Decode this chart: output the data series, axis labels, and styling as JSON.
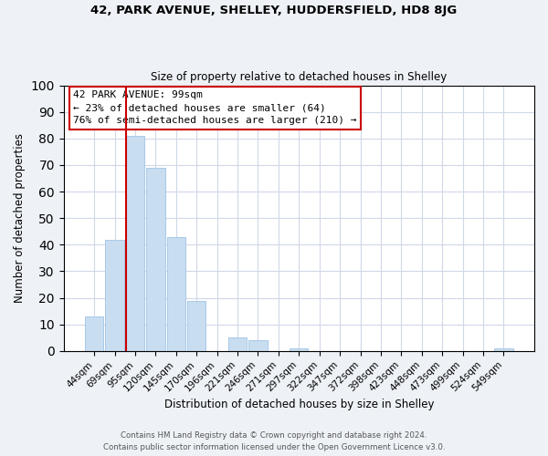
{
  "title1": "42, PARK AVENUE, SHELLEY, HUDDERSFIELD, HD8 8JG",
  "title2": "Size of property relative to detached houses in Shelley",
  "xlabel": "Distribution of detached houses by size in Shelley",
  "ylabel": "Number of detached properties",
  "categories": [
    "44sqm",
    "69sqm",
    "95sqm",
    "120sqm",
    "145sqm",
    "170sqm",
    "196sqm",
    "221sqm",
    "246sqm",
    "271sqm",
    "297sqm",
    "322sqm",
    "347sqm",
    "372sqm",
    "398sqm",
    "423sqm",
    "448sqm",
    "473sqm",
    "499sqm",
    "524sqm",
    "549sqm"
  ],
  "values": [
    13,
    42,
    81,
    69,
    43,
    19,
    0,
    5,
    4,
    0,
    1,
    0,
    0,
    0,
    0,
    0,
    0,
    0,
    0,
    0,
    1
  ],
  "bar_color": "#c8ddf0",
  "bar_edge_color": "#a8c8e8",
  "vline_x": 2.0,
  "vline_color": "#cc0000",
  "annotation_title": "42 PARK AVENUE: 99sqm",
  "annotation_line1": "← 23% of detached houses are smaller (64)",
  "annotation_line2": "76% of semi-detached houses are larger (210) →",
  "ylim": [
    0,
    100
  ],
  "yticks": [
    0,
    10,
    20,
    30,
    40,
    50,
    60,
    70,
    80,
    90,
    100
  ],
  "footer1": "Contains HM Land Registry data © Crown copyright and database right 2024.",
  "footer2": "Contains public sector information licensed under the Open Government Licence v3.0.",
  "bg_color": "#eef2f7",
  "plot_bg_color": "#ffffff",
  "grid_color": "#d0d8e8"
}
